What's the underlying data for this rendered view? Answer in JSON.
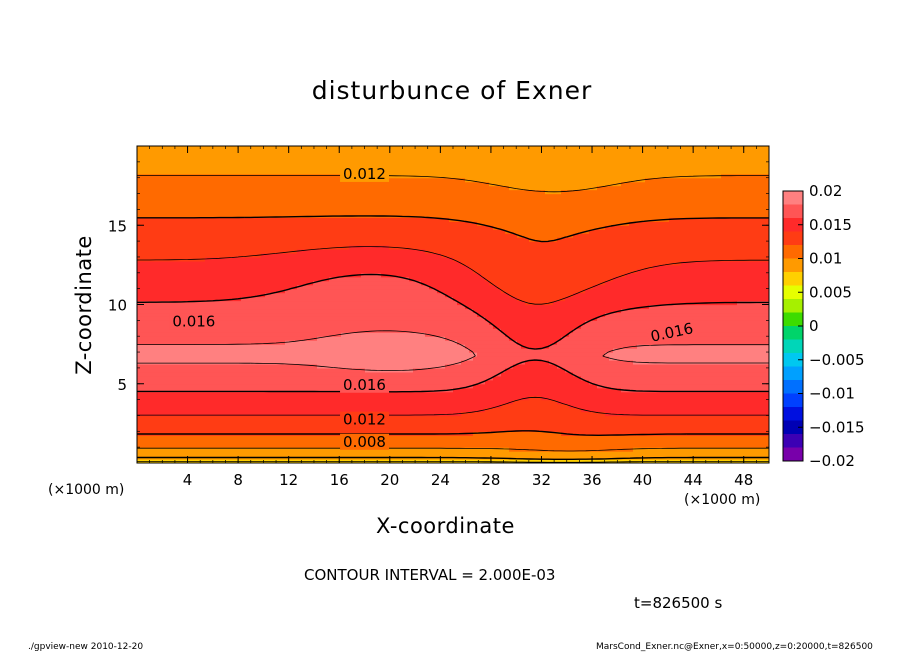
{
  "chart_data": {
    "type": "heatmap",
    "title": "disturbunce of Exner",
    "xlabel": "X-coordinate",
    "ylabel": "Z-coordinate",
    "x_unit": "(×1000 m)",
    "xlim": [
      0,
      50
    ],
    "ylim": [
      0,
      20
    ],
    "x_ticks": [
      4,
      8,
      12,
      16,
      20,
      24,
      28,
      32,
      36,
      40,
      44,
      48
    ],
    "y_ticks": [
      5,
      10,
      15
    ],
    "colorbar": {
      "range": [
        -0.02,
        0.02
      ],
      "tick_values": [
        0.02,
        0.015,
        0.01,
        0.005,
        0,
        -0.005,
        -0.01,
        -0.015,
        -0.02
      ],
      "tick_labels": [
        "0.02",
        "0.015",
        "0.01",
        "0.005",
        "0",
        "−0.005",
        "−0.01",
        "−0.015",
        "−0.02"
      ],
      "bands": [
        {
          "from": 0.018,
          "to": 0.02,
          "color": "#ff8080"
        },
        {
          "from": 0.016,
          "to": 0.018,
          "color": "#ff5555"
        },
        {
          "from": 0.014,
          "to": 0.016,
          "color": "#ff2a2a"
        },
        {
          "from": 0.012,
          "to": 0.014,
          "color": "#ff3c14"
        },
        {
          "from": 0.01,
          "to": 0.012,
          "color": "#ff6a00"
        },
        {
          "from": 0.008,
          "to": 0.01,
          "color": "#ff9a00"
        },
        {
          "from": 0.006,
          "to": 0.008,
          "color": "#ffd000"
        },
        {
          "from": 0.004,
          "to": 0.006,
          "color": "#e6ff00"
        },
        {
          "from": 0.002,
          "to": 0.004,
          "color": "#a6f000"
        },
        {
          "from": 0.0,
          "to": 0.002,
          "color": "#3ddc00"
        },
        {
          "from": -0.002,
          "to": 0.0,
          "color": "#00d46a"
        },
        {
          "from": -0.004,
          "to": -0.002,
          "color": "#00d6b8"
        },
        {
          "from": -0.006,
          "to": -0.004,
          "color": "#00c8f0"
        },
        {
          "from": -0.008,
          "to": -0.006,
          "color": "#00a0ff"
        },
        {
          "from": -0.01,
          "to": -0.008,
          "color": "#0070ff"
        },
        {
          "from": -0.012,
          "to": -0.01,
          "color": "#0040ff"
        },
        {
          "from": -0.014,
          "to": -0.012,
          "color": "#0010e0"
        },
        {
          "from": -0.016,
          "to": -0.014,
          "color": "#0000b4"
        },
        {
          "from": -0.018,
          "to": -0.016,
          "color": "#3c00b4"
        },
        {
          "from": -0.02,
          "to": -0.018,
          "color": "#7800aa"
        }
      ]
    },
    "contour_interval": 0.002,
    "contour_labels": [
      {
        "text": "0.012",
        "x": 18.0,
        "z": 18.3
      },
      {
        "text": "0.016",
        "x": 4.5,
        "z": 9.0
      },
      {
        "text": "0.016",
        "x": 42.3,
        "z": 8.3
      },
      {
        "text": "0.016",
        "x": 18.0,
        "z": 5.0
      },
      {
        "text": "0.012",
        "x": 18.0,
        "z": 2.8
      },
      {
        "text": "0.008",
        "x": 18.0,
        "z": 1.4
      }
    ]
  },
  "annotations": {
    "interval": "CONTOUR INTERVAL = 2.000E-03",
    "time": "t=826500 s"
  },
  "footer": {
    "left": "./gpview-new  2010-12-20",
    "right": "MarsCond_Exner.nc@Exner,x=0:50000,z=0:20000,t=826500"
  }
}
